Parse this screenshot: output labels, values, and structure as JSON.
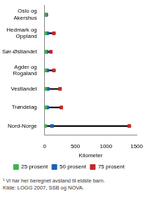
{
  "chart_data": {
    "type": "scatter",
    "orientation": "horizontal",
    "categories": [
      "Oslo og Akershus",
      "Hedmark og Oppland",
      "Sør-Østlandet",
      "Agder og Rogaland",
      "Vestlandet",
      "Trøndelag",
      "Nord-Norge"
    ],
    "series": [
      {
        "name": "25 prosent",
        "color": "#3db54a",
        "marker": "square",
        "values": [
          5,
          8,
          8,
          8,
          10,
          10,
          10
        ]
      },
      {
        "name": "50 prosent",
        "color": "#1f5fb4",
        "marker": "square",
        "values": [
          10,
          40,
          30,
          40,
          50,
          40,
          120
        ]
      },
      {
        "name": "75 prosent",
        "color": "#c0282d",
        "marker": "square",
        "values": [
          25,
          150,
          100,
          150,
          250,
          270,
          1380
        ]
      }
    ],
    "xlabel": "Kilometer",
    "xlim": [
      0,
      1500
    ],
    "xticks": [
      0,
      500,
      1000,
      1500
    ],
    "grid": false,
    "legend": "bottom",
    "footnote": [
      "¹ Vi har her beregnet avstand til eldste barn.",
      "Kilde: LOGG 2007, SSB og NOVA."
    ]
  }
}
